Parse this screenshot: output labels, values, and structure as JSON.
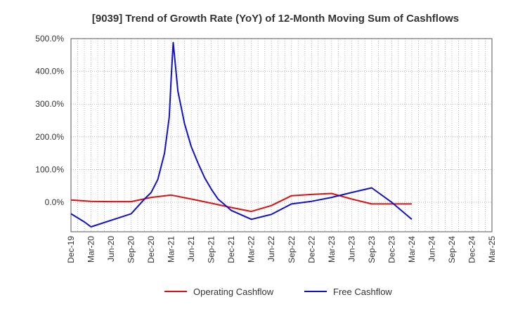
{
  "chart_data": {
    "type": "line",
    "title": "[9039]  Trend of Growth Rate (YoY) of 12-Month Moving Sum of Cashflows",
    "xlabel": "",
    "ylabel": "",
    "ylim": [
      -90,
      500
    ],
    "y_ticks": [
      0,
      100,
      200,
      300,
      400,
      500
    ],
    "y_tick_labels": [
      "0.0%",
      "100.0%",
      "200.0%",
      "300.0%",
      "400.0%",
      "500.0%"
    ],
    "x_tick_labels": [
      "Dec-19",
      "Mar-20",
      "Jun-20",
      "Sep-20",
      "Dec-20",
      "Mar-21",
      "Jun-21",
      "Sep-21",
      "Dec-21",
      "Mar-22",
      "Jun-22",
      "Sep-22",
      "Dec-22",
      "Mar-23",
      "Jun-23",
      "Sep-23",
      "Dec-23",
      "Mar-24",
      "Jun-24",
      "Sep-24",
      "Dec-24",
      "Mar-25"
    ],
    "grid": true,
    "legend_position": "bottom-center",
    "series": [
      {
        "name": "Operating Cashflow",
        "color": "#dd1111",
        "points": [
          [
            0,
            7
          ],
          [
            3,
            3
          ],
          [
            6,
            2
          ],
          [
            9,
            2
          ],
          [
            12,
            15
          ],
          [
            15,
            22
          ],
          [
            18,
            10
          ],
          [
            21,
            -3
          ],
          [
            24,
            -16
          ],
          [
            27,
            -28
          ],
          [
            30,
            -10
          ],
          [
            33,
            20
          ],
          [
            36,
            24
          ],
          [
            39,
            27
          ],
          [
            42,
            10
          ],
          [
            45,
            -5
          ],
          [
            48,
            -5
          ],
          [
            51,
            -5
          ]
        ]
      },
      {
        "name": "Free Cashflow",
        "color": "#1111cc",
        "points": [
          [
            0,
            -35
          ],
          [
            2,
            -60
          ],
          [
            3,
            -75
          ],
          [
            9,
            -35
          ],
          [
            11,
            10
          ],
          [
            12,
            30
          ],
          [
            13,
            70
          ],
          [
            14,
            150
          ],
          [
            14.7,
            260
          ],
          [
            15,
            380
          ],
          [
            15.3,
            488
          ],
          [
            16,
            340
          ],
          [
            17,
            240
          ],
          [
            18,
            170
          ],
          [
            19,
            120
          ],
          [
            20,
            75
          ],
          [
            21,
            40
          ],
          [
            22,
            10
          ],
          [
            24,
            -25
          ],
          [
            27,
            -52
          ],
          [
            30,
            -37
          ],
          [
            33,
            -5
          ],
          [
            36,
            3
          ],
          [
            39,
            15
          ],
          [
            42,
            30
          ],
          [
            45,
            44
          ],
          [
            48,
            0
          ],
          [
            51,
            -52
          ]
        ]
      }
    ]
  }
}
